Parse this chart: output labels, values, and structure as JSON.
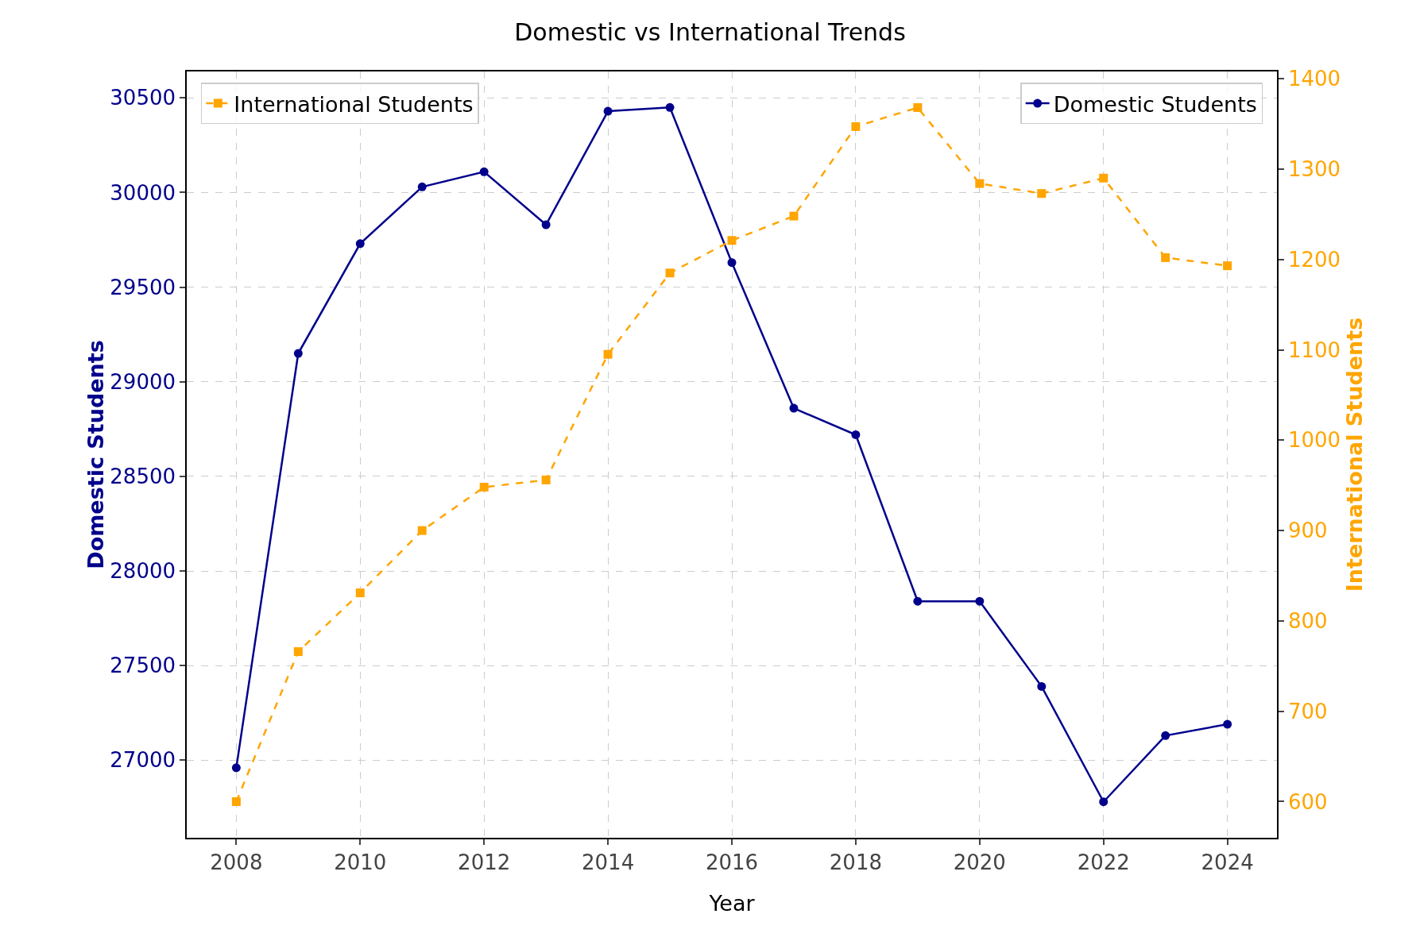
{
  "chart_data": {
    "type": "line",
    "title": "Domestic vs International Trends",
    "xlabel": "Year",
    "ylabel": "Domestic Students",
    "y2label": "International Students",
    "x": [
      2008,
      2009,
      2010,
      2011,
      2012,
      2013,
      2014,
      2015,
      2016,
      2017,
      2018,
      2019,
      2020,
      2021,
      2022,
      2023,
      2024
    ],
    "series": [
      {
        "name": "Domestic Students",
        "color": "#00008b",
        "marker": "circle",
        "line_style": "solid",
        "values": [
          26960,
          29150,
          29730,
          30030,
          30110,
          29830,
          30430,
          30450,
          29630,
          28860,
          28720,
          27840,
          27840,
          27390,
          26780,
          27130,
          27190
        ]
      },
      {
        "name": "International Students",
        "color": "#ffa500",
        "marker": "square",
        "line_style": "dashed",
        "axis": "y2",
        "values": [
          600,
          766,
          831,
          900,
          948,
          956,
          1095,
          1185,
          1221,
          1248,
          1347,
          1368,
          1284,
          1273,
          1290,
          1202,
          1193
        ]
      }
    ],
    "xlim": [
      2007.2,
      2024.8
    ],
    "xticks": [
      2008,
      2010,
      2012,
      2014,
      2016,
      2018,
      2020,
      2022,
      2024
    ],
    "ylim": [
      26590,
      30640
    ],
    "yticks": [
      27000,
      27500,
      28000,
      28500,
      29000,
      29500,
      30000,
      30500
    ],
    "y2lim": [
      560,
      1408
    ],
    "y2ticks": [
      600,
      700,
      800,
      900,
      1000,
      1100,
      1200,
      1300,
      1400
    ],
    "grid": true,
    "legend": "top"
  }
}
